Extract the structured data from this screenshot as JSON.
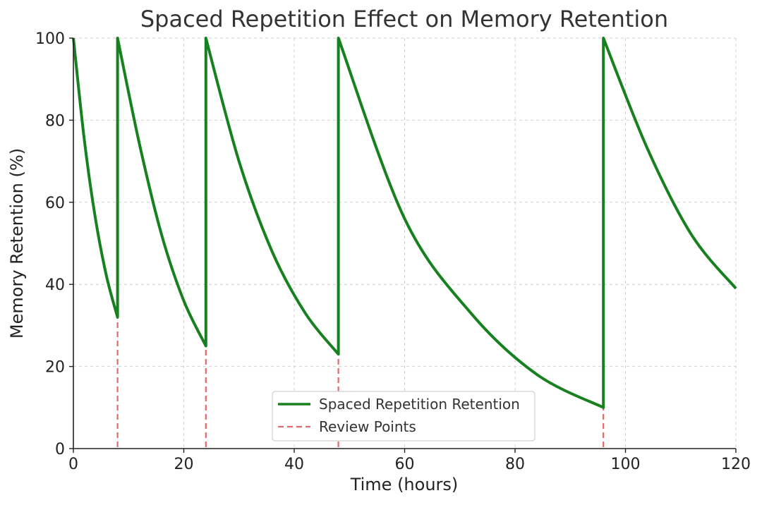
{
  "chart_data": {
    "type": "line",
    "title": "Spaced Repetition Effect on Memory Retention",
    "xlabel": "Time (hours)",
    "ylabel": "Memory Retention (%)",
    "xlim": [
      0,
      120
    ],
    "ylim": [
      0,
      100
    ],
    "xticks": [
      0,
      20,
      40,
      60,
      80,
      100,
      120
    ],
    "yticks": [
      0,
      20,
      40,
      60,
      80,
      100
    ],
    "grid": true,
    "legend_position": "lower-center",
    "review_points": [
      8,
      24,
      48,
      96
    ],
    "series": [
      {
        "name": "Spaced Repetition Retention",
        "color": "#17801f",
        "style": "solid",
        "segments": [
          {
            "x": [
              0,
              2,
              4,
              6,
              8
            ],
            "y": [
              100,
              75,
              56,
              42,
              32
            ]
          },
          {
            "x": [
              8,
              12,
              16,
              20,
              24
            ],
            "y": [
              100,
              74,
              52,
              36,
              25
            ]
          },
          {
            "x": [
              24,
              30,
              36,
              42,
              48
            ],
            "y": [
              100,
              70,
              48,
              33,
              23
            ]
          },
          {
            "x": [
              48,
              60,
              72,
              84,
              96
            ],
            "y": [
              100,
              56,
              33,
              18,
              10
            ]
          },
          {
            "x": [
              96,
              104,
              112,
              120
            ],
            "y": [
              100,
              73,
              52,
              39
            ]
          }
        ]
      },
      {
        "name": "Review Points",
        "color": "#e26a6a",
        "style": "dashed",
        "x": [
          8,
          24,
          48,
          96
        ]
      }
    ]
  }
}
